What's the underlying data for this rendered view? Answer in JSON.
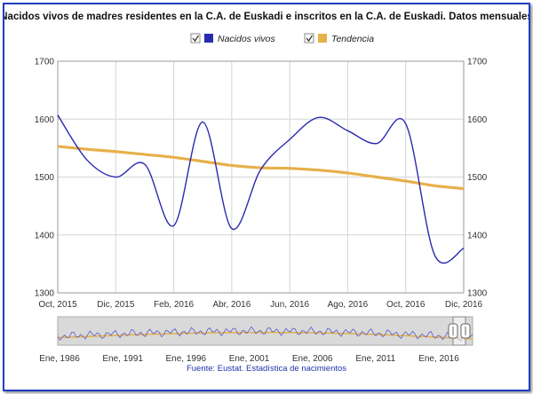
{
  "chart_data": {
    "type": "line",
    "title": "Nacidos vivos de madres residentes en la C.A. de Euskadi e inscritos en la C.A. de Euskadi. Datos mensuales",
    "source": "Fuente: Eustat. Estadística de nacimientos",
    "legend_placement": "top",
    "legend": [
      {
        "name": "Nacidos vivos",
        "checked": true,
        "color": "#2a2ab0"
      },
      {
        "name": "Tendencia",
        "checked": true,
        "color": "#e6b04a"
      }
    ],
    "x_ticks": [
      "Oct, 2015",
      "Dic, 2015",
      "Feb, 2016",
      "Abr, 2016",
      "Jun, 2016",
      "Ago, 2016",
      "Oct, 2016",
      "Dic, 2016"
    ],
    "x": [
      "Oct, 2015",
      "Nov, 2015",
      "Dic, 2015",
      "Ene, 2016",
      "Feb, 2016",
      "Mar, 2016",
      "Abr, 2016",
      "May, 2016",
      "Jun, 2016",
      "Jul, 2016",
      "Ago, 2016",
      "Sep, 2016",
      "Oct, 2016",
      "Nov, 2016",
      "Dic, 2016"
    ],
    "ylim": [
      1300,
      1700
    ],
    "y_ticks": [
      1300,
      1400,
      1500,
      1600,
      1700
    ],
    "grid": true,
    "series": [
      {
        "name": "Nacidos vivos",
        "color": "#2a2ab0",
        "values": [
          1607,
          1530,
          1500,
          1522,
          1416,
          1595,
          1411,
          1513,
          1565,
          1603,
          1580,
          1558,
          1592,
          1365,
          1377
        ]
      },
      {
        "name": "Tendencia",
        "color": "#e6b04a",
        "values": [
          1553,
          1548,
          1544,
          1539,
          1534,
          1527,
          1520,
          1516,
          1515,
          1512,
          1507,
          1500,
          1493,
          1485,
          1480
        ]
      }
    ],
    "navigator": {
      "x_ticks": [
        "Ene, 1986",
        "Ene, 1991",
        "Ene, 1996",
        "Ene, 2001",
        "Ene, 2006",
        "Ene, 2011",
        "Ene, 2016"
      ]
    }
  }
}
